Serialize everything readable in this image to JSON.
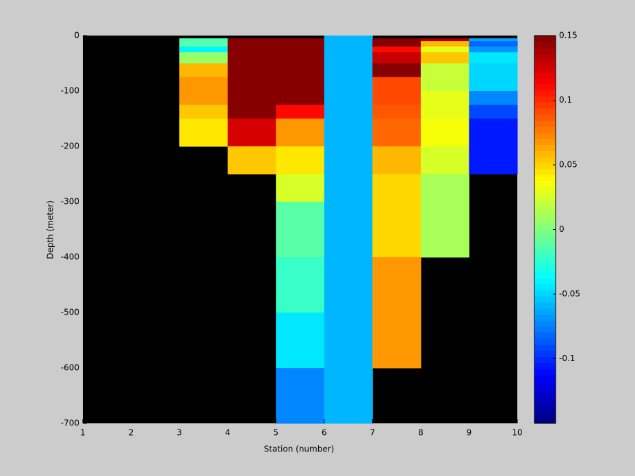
{
  "chart_data": {
    "type": "heatmap",
    "xlabel": "Station (number)",
    "ylabel": "Depth (meter)",
    "x": [
      1,
      2,
      3,
      4,
      5,
      6,
      7,
      8,
      9,
      10
    ],
    "xlim": [
      1,
      10
    ],
    "xticks": [
      1,
      2,
      3,
      4,
      5,
      6,
      7,
      8,
      9,
      10
    ],
    "depth_edges": [
      0,
      -5,
      -10,
      -20,
      -30,
      -50,
      -75,
      -100,
      -125,
      -150,
      -200,
      -250,
      -300,
      -400,
      -500,
      -600,
      -700
    ],
    "ylim": [
      -700,
      0
    ],
    "yticks": [
      0,
      -100,
      -200,
      -300,
      -400,
      -500,
      -600,
      -700
    ],
    "columns": [
      [
        null,
        null,
        null,
        null,
        null,
        null,
        null,
        null,
        null,
        null,
        null,
        null,
        null,
        null,
        null,
        null
      ],
      [
        null,
        null,
        null,
        null,
        null,
        null,
        null,
        null,
        null,
        null,
        null,
        null,
        null,
        null,
        null,
        null
      ],
      [
        null,
        -0.015,
        -0.01,
        -0.04,
        0.005,
        0.06,
        0.07,
        0.07,
        0.055,
        0.045,
        null,
        null,
        null,
        null,
        null,
        null
      ],
      [
        null,
        0.15,
        0.15,
        0.15,
        0.15,
        0.15,
        0.15,
        0.15,
        0.15,
        0.125,
        0.055,
        null,
        null,
        null,
        null,
        null
      ],
      [
        null,
        0.15,
        0.15,
        0.15,
        0.15,
        0.15,
        0.15,
        0.15,
        0.11,
        0.07,
        0.045,
        0.025,
        -0.01,
        -0.02,
        -0.045,
        -0.075
      ],
      [
        -0.06,
        -0.06,
        -0.06,
        -0.06,
        -0.06,
        -0.06,
        -0.06,
        -0.06,
        -0.06,
        -0.06,
        -0.06,
        -0.06,
        -0.06,
        -0.06,
        -0.06,
        -0.06
      ],
      [
        null,
        0.15,
        0.15,
        0.11,
        0.13,
        0.15,
        0.09,
        0.09,
        0.085,
        0.08,
        0.06,
        0.05,
        0.05,
        0.07,
        0.07,
        null
      ],
      [
        null,
        0.14,
        0.06,
        0.03,
        0.055,
        0.02,
        0.02,
        0.03,
        0.03,
        0.035,
        0.025,
        0.01,
        0.01,
        null,
        null,
        null
      ],
      [
        null,
        -0.065,
        -0.08,
        -0.07,
        -0.045,
        -0.05,
        -0.05,
        -0.075,
        -0.09,
        -0.105,
        -0.105,
        null,
        null,
        null,
        null,
        null
      ]
    ],
    "clim": [
      -0.15,
      0.15
    ],
    "cticks": [
      0.15,
      0.1,
      0.05,
      0,
      -0.05,
      -0.1
    ],
    "colormap": "jet",
    "nan_color": "#000000"
  }
}
